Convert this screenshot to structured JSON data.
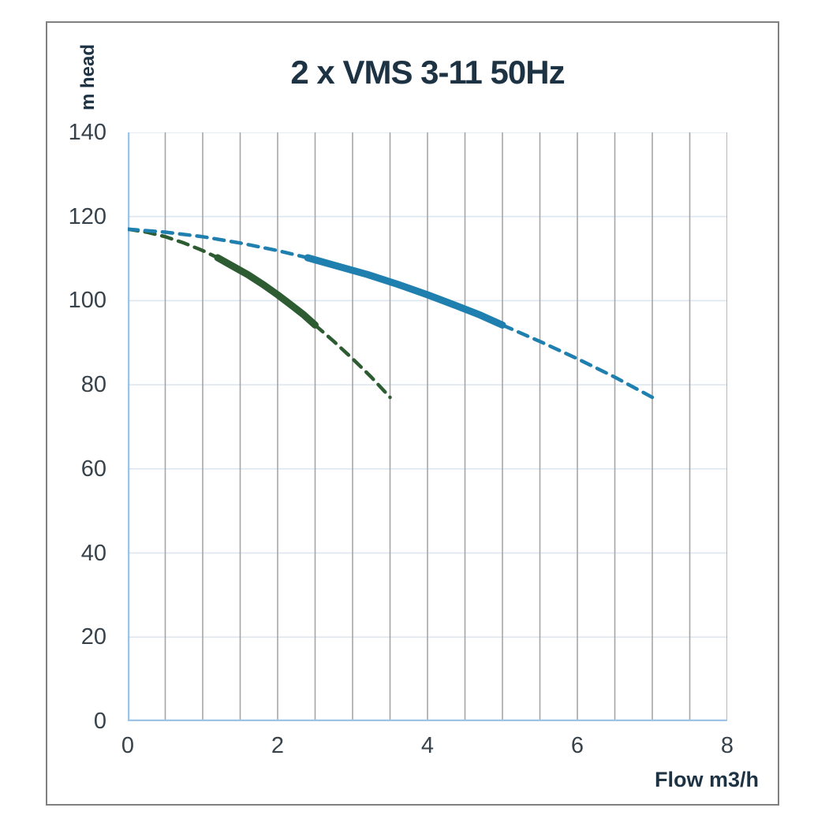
{
  "chart_data": {
    "type": "line",
    "title": "2 x VMS 3-11 50Hz",
    "xlabel": "Flow m3/h",
    "ylabel": "m head",
    "xlim": [
      0,
      8
    ],
    "ylim": [
      0,
      140
    ],
    "x_ticks": [
      0,
      2,
      4,
      6,
      8
    ],
    "x_grid_step": 0.5,
    "y_ticks": [
      0,
      20,
      40,
      60,
      80,
      100,
      120,
      140
    ],
    "grid": true,
    "legend": false,
    "colors": {
      "axis_line": "#9dc3e6",
      "grid_vertical": "#a6a6a6",
      "grid_horizontal": "#dde6ef",
      "frame_border": "#808080",
      "title_text": "#1d3344",
      "tick_text": "#37424b",
      "single_pump_curve": "#2d5c32",
      "dual_pump_curve": "#1f7fae"
    },
    "series": [
      {
        "id": "single-pump-curve",
        "color": "#2d5c32",
        "segments": [
          {
            "style": "dashed",
            "points": [
              [
                0,
                117
              ],
              [
                0.25,
                116.3
              ],
              [
                0.5,
                115.2
              ],
              [
                0.75,
                113.7
              ],
              [
                1,
                111.9
              ],
              [
                1.2,
                110.2
              ]
            ]
          },
          {
            "style": "solid",
            "points": [
              [
                1.2,
                110.2
              ],
              [
                1.4,
                108.2
              ],
              [
                1.6,
                106.2
              ],
              [
                1.8,
                103.9
              ],
              [
                2,
                101.4
              ],
              [
                2.2,
                98.7
              ],
              [
                2.35,
                96.6
              ],
              [
                2.5,
                94.2
              ]
            ]
          },
          {
            "style": "dashed",
            "points": [
              [
                2.5,
                94.2
              ],
              [
                2.75,
                90.3
              ],
              [
                3,
                86.2
              ],
              [
                3.25,
                81.8
              ],
              [
                3.5,
                77
              ]
            ]
          }
        ]
      },
      {
        "id": "dual-pump-curve",
        "color": "#1f7fae",
        "segments": [
          {
            "style": "dashed",
            "points": [
              [
                0,
                117
              ],
              [
                0.5,
                116.3
              ],
              [
                1,
                115.2
              ],
              [
                1.5,
                113.7
              ],
              [
                2,
                111.9
              ],
              [
                2.4,
                110.2
              ]
            ]
          },
          {
            "style": "solid",
            "points": [
              [
                2.4,
                110.2
              ],
              [
                2.8,
                108.2
              ],
              [
                3.2,
                106.2
              ],
              [
                3.6,
                103.9
              ],
              [
                4,
                101.4
              ],
              [
                4.4,
                98.7
              ],
              [
                4.7,
                96.6
              ],
              [
                5,
                94.2
              ]
            ]
          },
          {
            "style": "dashed",
            "points": [
              [
                5,
                94.2
              ],
              [
                5.5,
                90.3
              ],
              [
                6,
                86.2
              ],
              [
                6.5,
                81.8
              ],
              [
                7,
                77
              ]
            ]
          }
        ]
      }
    ]
  }
}
